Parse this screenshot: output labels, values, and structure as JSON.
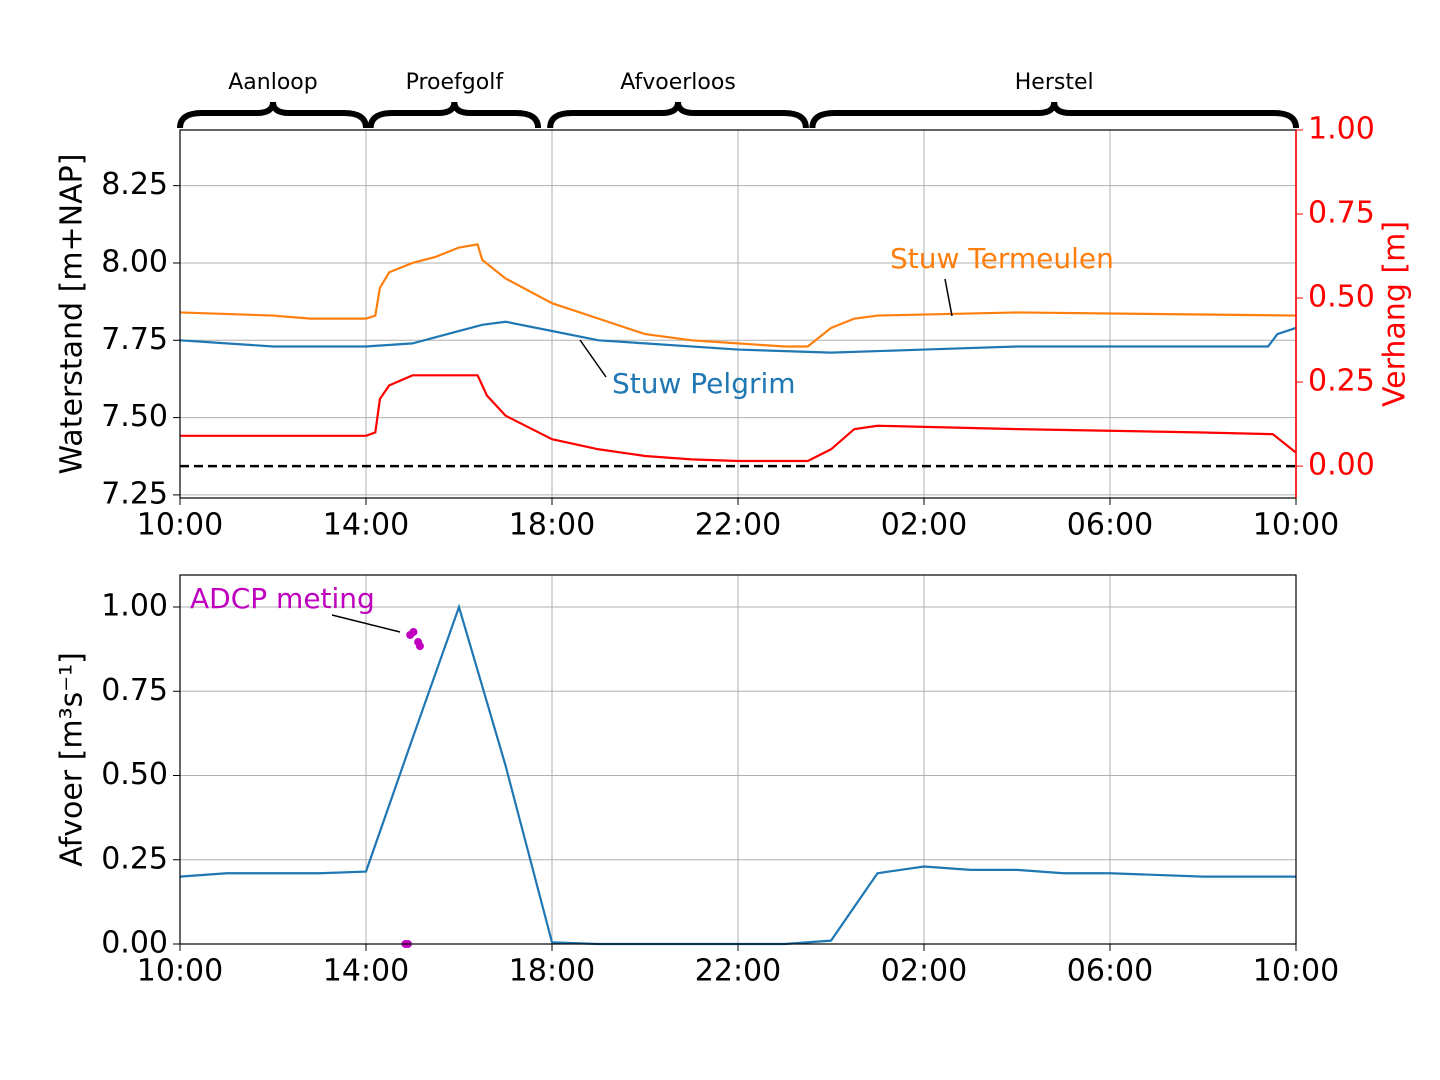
{
  "chart_data": [
    {
      "type": "line",
      "ylabel": "Waterstand [m+NAP]",
      "y2label": "Verhang [m]",
      "y2color": "#ff0000",
      "xlim": [
        0,
        24
      ],
      "xticks": [
        {
          "value": 0,
          "label": "10:00"
        },
        {
          "value": 4,
          "label": "14:00"
        },
        {
          "value": 8,
          "label": "18:00"
        },
        {
          "value": 12,
          "label": "22:00"
        },
        {
          "value": 16,
          "label": "02:00"
        },
        {
          "value": 20,
          "label": "06:00"
        },
        {
          "value": 24,
          "label": "10:00"
        }
      ],
      "ylim": [
        7.24,
        8.43
      ],
      "yticks": [
        7.25,
        {
          "value": 7.5,
          "label": "7.50"
        },
        7.75,
        {
          "value": 8,
          "label": "8.00"
        },
        8.25
      ],
      "y2lim": [
        -0.095,
        1.0
      ],
      "y2ticks": [
        {
          "value": 0,
          "label": "0.00"
        },
        0.25,
        {
          "value": 0.5,
          "label": "0.50"
        },
        0.75,
        {
          "value": 1,
          "label": "1.00"
        }
      ],
      "grid": true,
      "reference_line": {
        "axis": "y2",
        "value": 0,
        "color": "#000000"
      },
      "phases": [
        {
          "label": "Aanloop",
          "start": 0,
          "end": 4.0
        },
        {
          "label": "Proefgolf",
          "start": 4.1,
          "end": 7.7
        },
        {
          "label": "Afvoerloos",
          "start": 7.96,
          "end": 13.46
        },
        {
          "label": "Herstel",
          "start": 13.6,
          "end": 24
        }
      ],
      "series": [
        {
          "name": "Stuw Termeulen",
          "color": "#ff7f0e",
          "x": [
            0,
            2,
            2.8,
            4,
            4.2,
            4.3,
            4.5,
            5,
            5.5,
            6,
            6.4,
            6.5,
            7,
            8,
            9,
            10,
            11,
            12,
            13,
            13.5,
            14,
            14.5,
            15,
            18,
            24
          ],
          "values": [
            7.84,
            7.83,
            7.82,
            7.82,
            7.83,
            7.92,
            7.97,
            8.0,
            8.02,
            8.05,
            8.06,
            8.01,
            7.95,
            7.87,
            7.82,
            7.77,
            7.75,
            7.74,
            7.73,
            7.73,
            7.79,
            7.82,
            7.83,
            7.84,
            7.83
          ]
        },
        {
          "name": "Stuw Pelgrim",
          "color": "#1f77b4",
          "x": [
            0,
            1,
            2,
            4,
            5,
            5.5,
            6.5,
            7,
            8,
            9,
            10,
            12,
            14,
            16,
            18,
            22,
            23.4,
            23.6,
            24
          ],
          "values": [
            7.75,
            7.74,
            7.73,
            7.73,
            7.74,
            7.76,
            7.8,
            7.81,
            7.78,
            7.75,
            7.74,
            7.72,
            7.71,
            7.72,
            7.73,
            7.73,
            7.73,
            7.77,
            7.79
          ]
        },
        {
          "color": "#ff0000",
          "axis": "y2",
          "x": [
            0,
            4,
            4.2,
            4.3,
            4.5,
            5,
            6,
            6.4,
            6.6,
            7,
            8,
            9,
            10,
            11,
            12,
            13.5,
            14,
            14.5,
            15,
            18,
            22,
            23.5,
            24
          ],
          "values": [
            0.09,
            0.09,
            0.1,
            0.2,
            0.24,
            0.27,
            0.27,
            0.27,
            0.21,
            0.15,
            0.08,
            0.05,
            0.03,
            0.02,
            0.015,
            0.015,
            0.05,
            0.11,
            0.12,
            0.11,
            0.1,
            0.095,
            0.04
          ]
        }
      ]
    },
    {
      "type": "line",
      "ylabel": "Afvoer [m³s⁻¹]",
      "xlim": [
        0,
        24
      ],
      "xticks": [
        {
          "value": 0,
          "label": "10:00"
        },
        {
          "value": 4,
          "label": "14:00"
        },
        {
          "value": 8,
          "label": "18:00"
        },
        {
          "value": 12,
          "label": "22:00"
        },
        {
          "value": 16,
          "label": "02:00"
        },
        {
          "value": 20,
          "label": "06:00"
        },
        {
          "value": 24,
          "label": "10:00"
        }
      ],
      "ylim": [
        0,
        1.095
      ],
      "yticks": [
        {
          "value": 0,
          "label": "0.00"
        },
        0.25,
        {
          "value": 0.5,
          "label": "0.50"
        },
        0.75,
        {
          "value": 1,
          "label": "1.00"
        }
      ],
      "grid": true,
      "series": [
        {
          "color": "#1f77b4",
          "x": [
            0,
            1,
            2,
            3,
            4,
            5,
            6,
            7,
            8,
            9,
            10,
            11,
            12,
            13,
            14,
            15,
            16,
            17,
            18,
            19,
            20,
            21,
            22,
            23,
            24
          ],
          "values": [
            0.2,
            0.21,
            0.21,
            0.21,
            0.215,
            0.61,
            1.0,
            0.53,
            0.005,
            0,
            0,
            0,
            0,
            0,
            0.01,
            0.21,
            0.23,
            0.22,
            0.22,
            0.21,
            0.21,
            0.205,
            0.2,
            0.2,
            0.2
          ]
        },
        {
          "name": "ADCP meting",
          "color": "#bf00bf",
          "type": "scatter",
          "x": [
            4.95,
            5.02,
            5.12,
            5.16,
            4.85,
            4.9
          ],
          "values": [
            0.917,
            0.926,
            0.896,
            0.884,
            0,
            0
          ]
        }
      ]
    }
  ]
}
